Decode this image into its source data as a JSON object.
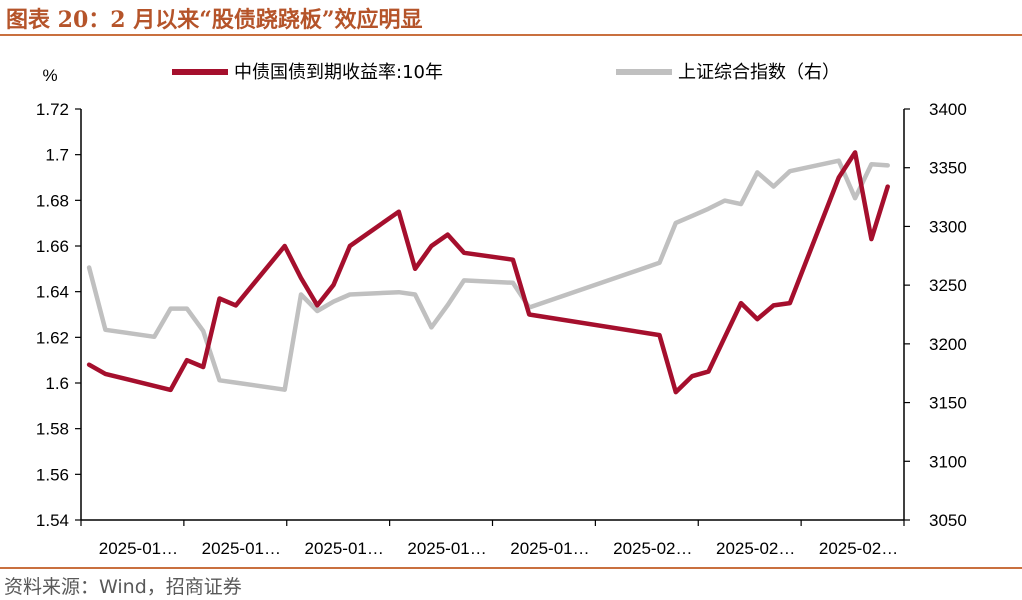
{
  "header": {
    "title": "图表 20：2 月以来“股债跷跷板”效应明显"
  },
  "footer": {
    "source": "资料来源：Wind，招商证券"
  },
  "colors": {
    "accent": "#c9703f",
    "bond_series": "#a50f2d",
    "index_series": "#c0c0c0"
  },
  "chart_data": {
    "type": "line",
    "left_axis": {
      "unit_label": "%",
      "ylim": [
        1.54,
        1.72
      ],
      "ticks": [
        "1.72",
        "1.7",
        "1.68",
        "1.66",
        "1.64",
        "1.62",
        "1.6",
        "1.58",
        "1.56",
        "1.54"
      ]
    },
    "right_axis": {
      "ylim": [
        3050,
        3400
      ],
      "ticks": [
        "3400",
        "3350",
        "3300",
        "3250",
        "3200",
        "3150",
        "3100",
        "3050"
      ]
    },
    "x_tick_labels": [
      "2025-01…",
      "2025-01…",
      "2025-01…",
      "2025-01…",
      "2025-01…",
      "2025-02…",
      "2025-02…",
      "2025-02…"
    ],
    "grid": false,
    "legend_position": "top",
    "series": [
      {
        "name": "中债国债到期收益率:10年",
        "axis": "left",
        "x": [
          1,
          2,
          6,
          7,
          8,
          9,
          10,
          13,
          14,
          15,
          16,
          17,
          20,
          21,
          22,
          23,
          24,
          27,
          28,
          36,
          37,
          38,
          39,
          40,
          41,
          42,
          43,
          44,
          47,
          48,
          49,
          50
        ],
        "values": [
          1.608,
          1.604,
          1.597,
          1.61,
          1.607,
          1.637,
          1.634,
          1.66,
          1.646,
          1.634,
          1.643,
          1.66,
          1.675,
          1.65,
          1.66,
          1.665,
          1.657,
          1.654,
          1.63,
          1.621,
          1.596,
          1.603,
          1.605,
          1.62,
          1.635,
          1.628,
          1.634,
          1.635,
          1.69,
          1.701,
          1.663,
          1.686
        ]
      },
      {
        "name": "上证综合指数（右）",
        "axis": "right",
        "x": [
          1,
          2,
          5,
          6,
          7,
          8,
          9,
          10,
          13,
          14,
          15,
          16,
          17,
          20,
          21,
          22,
          23,
          24,
          27,
          28,
          36,
          37,
          38,
          39,
          40,
          41,
          42,
          43,
          44,
          47,
          48,
          49,
          50
        ],
        "values": [
          3265,
          3212,
          3206,
          3230,
          3230,
          3211,
          3169,
          3167,
          3161,
          3242,
          3228,
          3236,
          3242,
          3244,
          3242,
          3214,
          3233,
          3254,
          3252,
          3231,
          3269,
          3303,
          3309,
          3315,
          3322,
          3319,
          3346,
          3334,
          3347,
          3356,
          3324,
          3353,
          3352
        ]
      }
    ]
  }
}
